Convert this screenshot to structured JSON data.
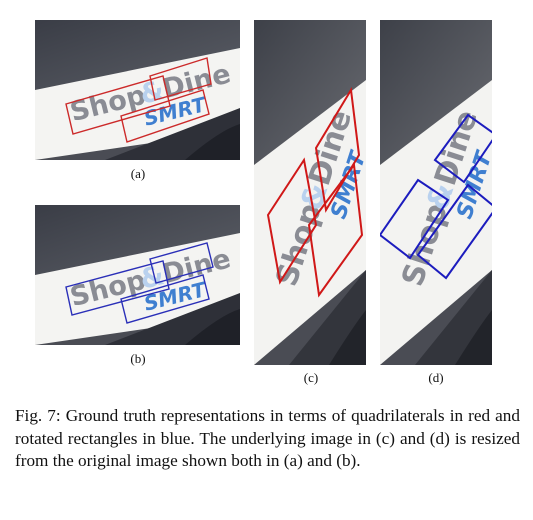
{
  "figure": {
    "panels": [
      {
        "id": "a",
        "label": "(a)",
        "logo_text": "Shop&Dine",
        "logo_sub": "SMRT",
        "box_color": "#cc2a2a",
        "box_type": "quadrilateral"
      },
      {
        "id": "b",
        "label": "(b)",
        "logo_text": "Shop&Dine",
        "logo_sub": "SMRT",
        "box_color": "#2a2fb8",
        "box_type": "rotated rectangle"
      },
      {
        "id": "c",
        "label": "(c)",
        "logo_text": "Shop&Dine",
        "logo_sub": "SMRT",
        "box_color": "#d01818",
        "box_type": "quadrilateral"
      },
      {
        "id": "d",
        "label": "(d)",
        "logo_text": "Shop&Dine",
        "logo_sub": "SMRT",
        "box_color": "#1c1cbe",
        "box_type": "rotated rectangle"
      }
    ],
    "caption": "Fig. 7: Ground truth representations in terms of quadrilaterals in red and rotated rectangles in blue. The underlying image in (c) and (d) is resized from the original image shown both in (a) and (b)."
  },
  "colors": {
    "red": "#cc2a2a",
    "blue": "#2a2fb8",
    "logo_gray": "#8a8c94",
    "logo_blue": "#3f7fd0"
  }
}
